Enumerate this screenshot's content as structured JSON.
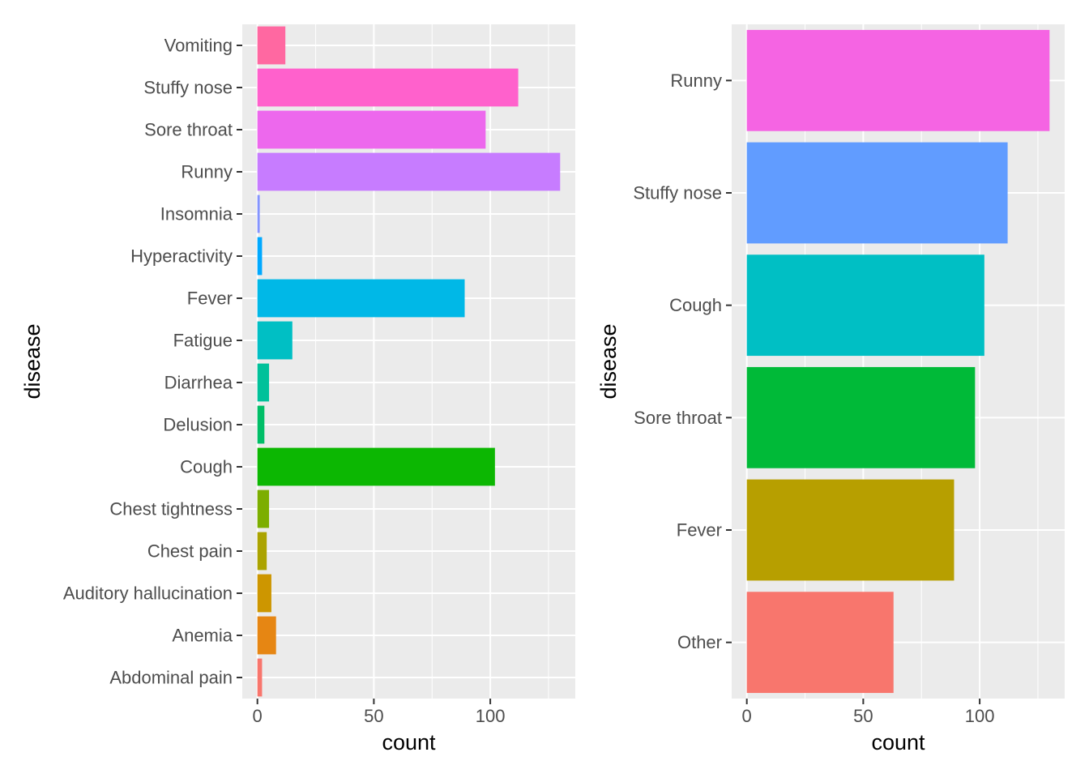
{
  "chart_data": [
    {
      "type": "bar",
      "orientation": "horizontal",
      "xlabel": "count",
      "ylabel": "disease",
      "xlim": [
        -6.5,
        136.5
      ],
      "xticks": [
        0,
        50,
        100
      ],
      "grid": true,
      "legend": "none",
      "categories": [
        "Abdominal pain",
        "Anemia",
        "Auditory hallucination",
        "Chest pain",
        "Chest tightness",
        "Cough",
        "Delusion",
        "Diarrhea",
        "Fatigue",
        "Fever",
        "Hyperactivity",
        "Insomnia",
        "Runny",
        "Sore throat",
        "Stuffy nose",
        "Vomiting"
      ],
      "values": [
        2,
        8,
        6,
        4,
        5,
        102,
        3,
        5,
        15,
        89,
        2,
        1,
        130,
        98,
        112,
        12
      ],
      "colors": [
        "#F8766D",
        "#E68613",
        "#CD9600",
        "#ABA300",
        "#7CAE00",
        "#0CB702",
        "#00BE67",
        "#00C19A",
        "#00BFC4",
        "#00B8E7",
        "#00A9FF",
        "#8494FF",
        "#C77CFF",
        "#ED68ED",
        "#FF61CC",
        "#FF68A1"
      ]
    },
    {
      "type": "bar",
      "orientation": "horizontal",
      "xlabel": "count",
      "ylabel": "disease",
      "xlim": [
        -6.5,
        136.5
      ],
      "xticks": [
        0,
        50,
        100
      ],
      "grid": true,
      "legend": "none",
      "categories": [
        "Other",
        "Fever",
        "Sore throat",
        "Cough",
        "Stuffy nose",
        "Runny"
      ],
      "values": [
        63,
        89,
        98,
        102,
        112,
        130
      ],
      "colors": [
        "#F8766D",
        "#B79F00",
        "#00BA38",
        "#00BFC4",
        "#619CFF",
        "#F564E3"
      ]
    }
  ]
}
